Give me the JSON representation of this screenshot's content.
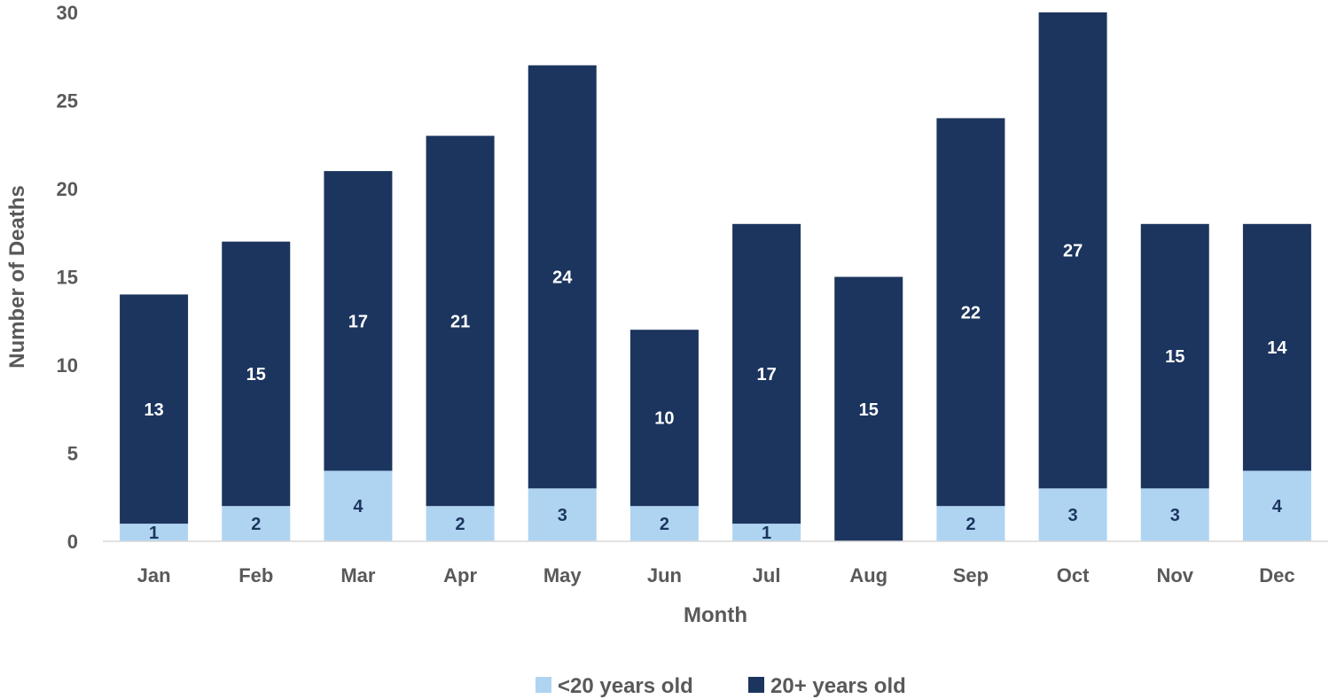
{
  "chart_data": {
    "type": "bar",
    "stacked": true,
    "title": "",
    "xlabel": "Month",
    "ylabel": "Number of Deaths",
    "ylim": [
      0,
      30
    ],
    "yticks": [
      0,
      5,
      10,
      15,
      20,
      25,
      30
    ],
    "grid": false,
    "legend_position": "bottom",
    "categories": [
      "Jan",
      "Feb",
      "Mar",
      "Apr",
      "May",
      "Jun",
      "Jul",
      "Aug",
      "Sep",
      "Oct",
      "Nov",
      "Dec"
    ],
    "series": [
      {
        "name": "<20 years old",
        "color": "#afd4f2",
        "label_color": "#1c355e",
        "values": [
          1,
          2,
          4,
          2,
          3,
          2,
          1,
          0,
          2,
          3,
          3,
          4
        ]
      },
      {
        "name": "20+ years old",
        "color": "#1c355e",
        "label_color": "#ffffff",
        "values": [
          13,
          15,
          17,
          21,
          24,
          10,
          17,
          15,
          22,
          27,
          15,
          14
        ]
      }
    ]
  }
}
